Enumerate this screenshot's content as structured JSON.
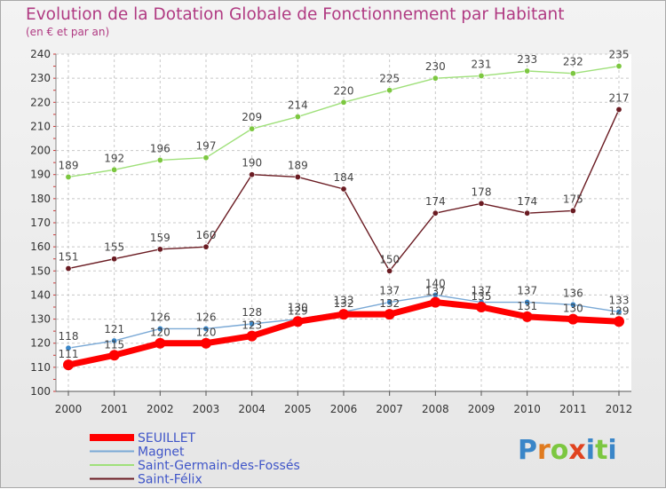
{
  "chart_data": {
    "type": "line",
    "title": "Evolution de la Dotation Globale de Fonctionnement par Habitant",
    "subtitle": "(en € et par an)",
    "x": [
      "2000",
      "2001",
      "2002",
      "2003",
      "2004",
      "2005",
      "2006",
      "2007",
      "2008",
      "2009",
      "2010",
      "2011",
      "2012"
    ],
    "ylim": [
      100,
      240
    ],
    "yticks": [
      "100",
      "110",
      "120",
      "130",
      "140",
      "150",
      "160",
      "170",
      "180",
      "190",
      "200",
      "210",
      "220",
      "230",
      "240"
    ],
    "grid": true,
    "legend_position": "bottom-left",
    "series": [
      {
        "name": "SEUILLET",
        "color": "#ff0000",
        "values": [
          111,
          115,
          120,
          120,
          123,
          129,
          132,
          132,
          137,
          135,
          131,
          130,
          129
        ]
      },
      {
        "name": "Magnet",
        "color": "#7aa9d6",
        "marker_color": "#3a86c8",
        "values": [
          118,
          121,
          126,
          126,
          128,
          130,
          133,
          137,
          140,
          137,
          137,
          136,
          133
        ]
      },
      {
        "name": "Saint-Germain-des-Fossés",
        "color": "#9fe07a",
        "marker_color": "#7cc740",
        "values": [
          189,
          192,
          196,
          197,
          209,
          214,
          220,
          225,
          230,
          231,
          233,
          232,
          235
        ]
      },
      {
        "name": "Saint-Félix",
        "color": "#6a1b22",
        "marker_color": "#6a1b22",
        "values": [
          151,
          155,
          159,
          160,
          190,
          189,
          184,
          150,
          174,
          178,
          174,
          175,
          217
        ]
      }
    ]
  },
  "logo": {
    "text": "Proxiti"
  }
}
